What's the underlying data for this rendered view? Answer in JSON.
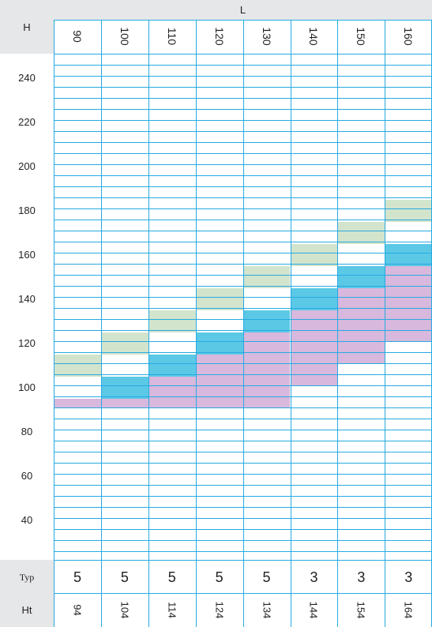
{
  "chart_data": {
    "type": "heatmap",
    "corner_label": "H",
    "top_axis_label": "L",
    "columns_L": [
      "90",
      "100",
      "110",
      "120",
      "130",
      "140",
      "150",
      "160"
    ],
    "y_ticks": [
      "240",
      "220",
      "200",
      "180",
      "160",
      "140",
      "120",
      "100",
      "80",
      "60",
      "40"
    ],
    "typ_label": "Typ",
    "typ_values": [
      "5",
      "5",
      "5",
      "5",
      "5",
      "3",
      "3",
      "3"
    ],
    "ht_label": "Ht",
    "ht_values": [
      "94",
      "104",
      "114",
      "124",
      "134",
      "144",
      "154",
      "164"
    ],
    "bands": [
      {
        "column": "90",
        "green": [
          105,
          115
        ],
        "blue": null,
        "purple": [
          91,
          95
        ]
      },
      {
        "column": "100",
        "green": [
          115,
          125
        ],
        "blue": [
          95,
          105
        ],
        "purple": [
          91,
          95
        ]
      },
      {
        "column": "110",
        "green": [
          125,
          135
        ],
        "blue": [
          105,
          115
        ],
        "purple": [
          91,
          105
        ]
      },
      {
        "column": "120",
        "green": [
          135,
          145
        ],
        "blue": [
          115,
          125
        ],
        "purple": [
          91,
          115
        ]
      },
      {
        "column": "130",
        "green": [
          145,
          155
        ],
        "blue": [
          125,
          135
        ],
        "purple": [
          91,
          125
        ]
      },
      {
        "column": "140",
        "green": [
          155,
          165
        ],
        "blue": [
          135,
          145
        ],
        "purple": [
          101,
          135
        ]
      },
      {
        "column": "150",
        "green": [
          165,
          175
        ],
        "blue": [
          145,
          155
        ],
        "purple": [
          111,
          145
        ]
      },
      {
        "column": "160",
        "green": [
          175,
          185
        ],
        "blue": [
          155,
          165
        ],
        "purple": [
          121,
          155
        ]
      }
    ],
    "colors": {
      "green": "#d3e4cd",
      "blue": "#5bc8e6",
      "purple": "#d8b8dc",
      "grid": "#27aae1",
      "panel": "#e6e7e8"
    }
  }
}
